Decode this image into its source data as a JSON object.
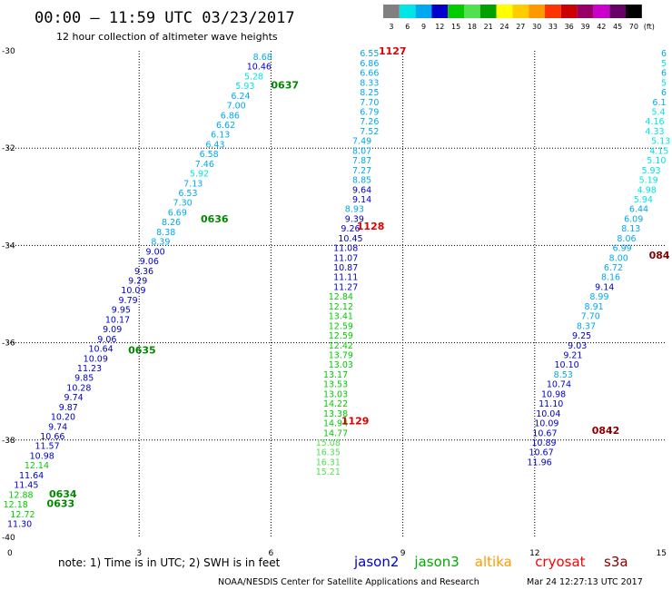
{
  "title": "00:00 – 11:59 UTC 03/23/2017",
  "subtitle": "12 hour collection of altimeter wave heights",
  "note": "note:  1) Time is in UTC;  2) SWH is in feet",
  "credit": "NOAA/NESDIS Center for Satellite Applications and Research",
  "generated": "Mar 24 12:27:13 UTC 2017",
  "colors": {
    "text_black": "#000000",
    "pass_label_green": "#008800",
    "pass_label_red": "#dd0000",
    "pass_label_darkred": "#880000",
    "grid": "#000000"
  },
  "chart_data": {
    "type": "scatter",
    "xlim": [
      0,
      15
    ],
    "ylim": [
      -40,
      -30
    ],
    "x_ticks": [
      "0",
      "3",
      "6",
      "9",
      "12",
      "15"
    ],
    "y_ticks": [
      "-30",
      "-32",
      "-34",
      "-36",
      "-38",
      "-40"
    ],
    "grid": true,
    "color_scale": {
      "unit": "(ft)",
      "values": [
        "3",
        "6",
        "9",
        "12",
        "15",
        "18",
        "21",
        "24",
        "27",
        "30",
        "33",
        "36",
        "39",
        "42",
        "45",
        "70"
      ],
      "colors": [
        "#808080",
        "#00e5e5",
        "#00a8f0",
        "#0000cc",
        "#00cc00",
        "#50e050",
        "#00a000",
        "#ffff00",
        "#ffcc00",
        "#ff9900",
        "#ff3300",
        "#cc0000",
        "#990066",
        "#cc00cc",
        "#660066",
        "#000000"
      ]
    },
    "legend": [
      {
        "name": "jason2",
        "color": "#0000cc"
      },
      {
        "name": "jason3",
        "color": "#00aa00"
      },
      {
        "name": "altika",
        "color": "#ff9900"
      },
      {
        "name": "cryosat",
        "color": "#ff0000"
      },
      {
        "name": "s3a",
        "color": "#880000"
      }
    ],
    "pass_labels": [
      {
        "text": "0637",
        "x": 6.0,
        "y": -30.7,
        "color": "#008800"
      },
      {
        "text": "0636",
        "x": 4.4,
        "y": -33.45,
        "color": "#008800"
      },
      {
        "text": "0635",
        "x": 2.75,
        "y": -36.15,
        "color": "#008800"
      },
      {
        "text": "0634",
        "x": 0.95,
        "y": -39.1,
        "color": "#008800"
      },
      {
        "text": "0633",
        "x": 0.9,
        "y": -39.3,
        "color": "#008800"
      },
      {
        "text": "1127",
        "x": 8.45,
        "y": -30.0,
        "color": "#dd0000"
      },
      {
        "text": "1128",
        "x": 7.95,
        "y": -33.6,
        "color": "#dd0000"
      },
      {
        "text": "1129",
        "x": 7.6,
        "y": -37.6,
        "color": "#dd0000"
      },
      {
        "text": "0842",
        "x": 13.3,
        "y": -37.8,
        "color": "#880000"
      },
      {
        "text": "084",
        "x": 14.6,
        "y": -34.2,
        "color": "#880000"
      }
    ],
    "series": [
      {
        "name": "pass 0633-0637",
        "points": [
          {
            "x": 5.81,
            "y": -30.12,
            "v": "8.68"
          },
          {
            "x": 5.73,
            "y": -30.32,
            "v": "10.46"
          },
          {
            "x": 5.61,
            "y": -30.52,
            "v": "5.28"
          },
          {
            "x": 5.41,
            "y": -30.72,
            "v": "5.93"
          },
          {
            "x": 5.31,
            "y": -30.92,
            "v": "6.24"
          },
          {
            "x": 5.21,
            "y": -31.12,
            "v": "7.00"
          },
          {
            "x": 5.07,
            "y": -31.32,
            "v": "6.86"
          },
          {
            "x": 4.97,
            "y": -31.52,
            "v": "6.62"
          },
          {
            "x": 4.85,
            "y": -31.72,
            "v": "6.13"
          },
          {
            "x": 4.73,
            "y": -31.92,
            "v": "6.43"
          },
          {
            "x": 4.59,
            "y": -32.12,
            "v": "6.58"
          },
          {
            "x": 4.49,
            "y": -32.32,
            "v": "7.46"
          },
          {
            "x": 4.37,
            "y": -32.52,
            "v": "5.92"
          },
          {
            "x": 4.23,
            "y": -32.72,
            "v": "7.13"
          },
          {
            "x": 4.11,
            "y": -32.92,
            "v": "6.53"
          },
          {
            "x": 3.99,
            "y": -33.12,
            "v": "7.30"
          },
          {
            "x": 3.87,
            "y": -33.32,
            "v": "6.69"
          },
          {
            "x": 3.73,
            "y": -33.52,
            "v": "8.26"
          },
          {
            "x": 3.61,
            "y": -33.72,
            "v": "8.38"
          },
          {
            "x": 3.49,
            "y": -33.92,
            "v": "8.39"
          },
          {
            "x": 3.37,
            "y": -34.12,
            "v": "9.00"
          },
          {
            "x": 3.23,
            "y": -34.32,
            "v": "9.06"
          },
          {
            "x": 3.11,
            "y": -34.52,
            "v": "9.36"
          },
          {
            "x": 2.97,
            "y": -34.72,
            "v": "9.29"
          },
          {
            "x": 2.87,
            "y": -34.92,
            "v": "10.09"
          },
          {
            "x": 2.75,
            "y": -35.12,
            "v": "9.79"
          },
          {
            "x": 2.59,
            "y": -35.32,
            "v": "9.95"
          },
          {
            "x": 2.51,
            "y": -35.52,
            "v": "10.17"
          },
          {
            "x": 2.39,
            "y": -35.72,
            "v": "9.09"
          },
          {
            "x": 2.27,
            "y": -35.92,
            "v": "9.06"
          },
          {
            "x": 2.13,
            "y": -36.12,
            "v": "10.64"
          },
          {
            "x": 2.01,
            "y": -36.32,
            "v": "10.09"
          },
          {
            "x": 1.87,
            "y": -36.52,
            "v": "11.23"
          },
          {
            "x": 1.75,
            "y": -36.72,
            "v": "9.85"
          },
          {
            "x": 1.63,
            "y": -36.92,
            "v": "10.28"
          },
          {
            "x": 1.51,
            "y": -37.12,
            "v": "9.74"
          },
          {
            "x": 1.39,
            "y": -37.32,
            "v": "9.87"
          },
          {
            "x": 1.27,
            "y": -37.52,
            "v": "10.20"
          },
          {
            "x": 1.15,
            "y": -37.72,
            "v": "9.74"
          },
          {
            "x": 1.03,
            "y": -37.92,
            "v": "10.66"
          },
          {
            "x": 0.91,
            "y": -38.12,
            "v": "11.57"
          },
          {
            "x": 0.79,
            "y": -38.32,
            "v": "10.98"
          },
          {
            "x": 0.67,
            "y": -38.52,
            "v": "12.14"
          },
          {
            "x": 0.55,
            "y": -38.72,
            "v": "11.64"
          },
          {
            "x": 0.43,
            "y": -38.92,
            "v": "11.45"
          },
          {
            "x": 0.31,
            "y": -39.12,
            "v": "12.88"
          },
          {
            "x": 0.19,
            "y": -39.32,
            "v": "12.18"
          },
          {
            "x": 0.07,
            "y": -39.52,
            "v": "12.72"
          },
          {
            "x": 0.0,
            "y": -39.72,
            "v": "11.30"
          }
        ]
      },
      {
        "name": "pass 1127-1129",
        "points": [
          {
            "x": 8.24,
            "y": -30.05,
            "v": "6.55"
          },
          {
            "x": 8.24,
            "y": -30.25,
            "v": "6.86"
          },
          {
            "x": 8.24,
            "y": -30.45,
            "v": "6.66"
          },
          {
            "x": 8.24,
            "y": -30.65,
            "v": "8.33"
          },
          {
            "x": 8.24,
            "y": -30.85,
            "v": "8.25"
          },
          {
            "x": 8.24,
            "y": -31.05,
            "v": "7.70"
          },
          {
            "x": 8.24,
            "y": -31.25,
            "v": "6.79"
          },
          {
            "x": 8.24,
            "y": -31.45,
            "v": "7.26"
          },
          {
            "x": 8.24,
            "y": -31.65,
            "v": "7.52"
          },
          {
            "x": 8.07,
            "y": -31.85,
            "v": "7.49"
          },
          {
            "x": 8.07,
            "y": -32.05,
            "v": "8.07"
          },
          {
            "x": 8.07,
            "y": -32.25,
            "v": "7.87"
          },
          {
            "x": 8.07,
            "y": -32.45,
            "v": "7.27"
          },
          {
            "x": 8.07,
            "y": -32.65,
            "v": "8.85"
          },
          {
            "x": 8.07,
            "y": -32.85,
            "v": "9.64"
          },
          {
            "x": 8.07,
            "y": -33.05,
            "v": "9.14"
          },
          {
            "x": 7.9,
            "y": -33.25,
            "v": "8.93"
          },
          {
            "x": 7.9,
            "y": -33.45,
            "v": "9.39"
          },
          {
            "x": 7.81,
            "y": -33.65,
            "v": "9.26"
          },
          {
            "x": 7.81,
            "y": -33.85,
            "v": "10.45"
          },
          {
            "x": 7.7,
            "y": -34.05,
            "v": "11.08"
          },
          {
            "x": 7.7,
            "y": -34.25,
            "v": "11.07"
          },
          {
            "x": 7.7,
            "y": -34.45,
            "v": "10.87"
          },
          {
            "x": 7.7,
            "y": -34.65,
            "v": "11.11"
          },
          {
            "x": 7.7,
            "y": -34.85,
            "v": "11.27"
          },
          {
            "x": 7.59,
            "y": -35.05,
            "v": "12.84"
          },
          {
            "x": 7.59,
            "y": -35.25,
            "v": "12.12"
          },
          {
            "x": 7.59,
            "y": -35.45,
            "v": "13.41"
          },
          {
            "x": 7.59,
            "y": -35.65,
            "v": "12.59"
          },
          {
            "x": 7.59,
            "y": -35.85,
            "v": "12.59"
          },
          {
            "x": 7.59,
            "y": -36.05,
            "v": "12.42"
          },
          {
            "x": 7.59,
            "y": -36.25,
            "v": "13.79"
          },
          {
            "x": 7.59,
            "y": -36.45,
            "v": "13.03"
          },
          {
            "x": 7.47,
            "y": -36.65,
            "v": "13.17"
          },
          {
            "x": 7.47,
            "y": -36.85,
            "v": "13.53"
          },
          {
            "x": 7.47,
            "y": -37.05,
            "v": "13.03"
          },
          {
            "x": 7.47,
            "y": -37.25,
            "v": "14.22"
          },
          {
            "x": 7.47,
            "y": -37.45,
            "v": "13.38"
          },
          {
            "x": 7.47,
            "y": -37.65,
            "v": "14.94"
          },
          {
            "x": 7.47,
            "y": -37.85,
            "v": "14.77"
          },
          {
            "x": 7.3,
            "y": -38.05,
            "v": "15.08"
          },
          {
            "x": 7.3,
            "y": -38.25,
            "v": "16.35"
          },
          {
            "x": 7.3,
            "y": -38.45,
            "v": "16.31"
          },
          {
            "x": 7.3,
            "y": -38.65,
            "v": "15.21"
          }
        ]
      },
      {
        "name": "pass 0842",
        "points": [
          {
            "x": 15.0,
            "y": -30.05,
            "v": "6"
          },
          {
            "x": 15.0,
            "y": -30.25,
            "v": "5"
          },
          {
            "x": 15.0,
            "y": -30.45,
            "v": "6"
          },
          {
            "x": 15.0,
            "y": -30.65,
            "v": "5"
          },
          {
            "x": 15.0,
            "y": -30.85,
            "v": "6"
          },
          {
            "x": 14.99,
            "y": -31.05,
            "v": "6.1"
          },
          {
            "x": 14.97,
            "y": -31.25,
            "v": "5.4"
          },
          {
            "x": 14.95,
            "y": -31.45,
            "v": "4.16"
          },
          {
            "x": 14.95,
            "y": -31.65,
            "v": "4.33"
          },
          {
            "x": 14.87,
            "y": -31.85,
            "v": "5.13"
          },
          {
            "x": 14.83,
            "y": -32.05,
            "v": "4.15"
          },
          {
            "x": 14.77,
            "y": -32.25,
            "v": "5.10"
          },
          {
            "x": 14.65,
            "y": -32.45,
            "v": "5.93"
          },
          {
            "x": 14.59,
            "y": -32.65,
            "v": "5.19"
          },
          {
            "x": 14.55,
            "y": -32.85,
            "v": "4.98"
          },
          {
            "x": 14.47,
            "y": -33.05,
            "v": "5.94"
          },
          {
            "x": 14.37,
            "y": -33.25,
            "v": "6.44"
          },
          {
            "x": 14.25,
            "y": -33.45,
            "v": "6.09"
          },
          {
            "x": 14.19,
            "y": -33.65,
            "v": "8.13"
          },
          {
            "x": 14.09,
            "y": -33.85,
            "v": "8.06"
          },
          {
            "x": 13.99,
            "y": -34.05,
            "v": "6.99"
          },
          {
            "x": 13.91,
            "y": -34.25,
            "v": "8.00"
          },
          {
            "x": 13.79,
            "y": -34.45,
            "v": "6.72"
          },
          {
            "x": 13.73,
            "y": -34.65,
            "v": "8.16"
          },
          {
            "x": 13.59,
            "y": -34.85,
            "v": "9.14"
          },
          {
            "x": 13.47,
            "y": -35.05,
            "v": "8.99"
          },
          {
            "x": 13.35,
            "y": -35.25,
            "v": "8.91"
          },
          {
            "x": 13.27,
            "y": -35.45,
            "v": "7.70"
          },
          {
            "x": 13.17,
            "y": -35.65,
            "v": "8.37"
          },
          {
            "x": 13.07,
            "y": -35.85,
            "v": "9.25"
          },
          {
            "x": 12.97,
            "y": -36.05,
            "v": "9.03"
          },
          {
            "x": 12.87,
            "y": -36.25,
            "v": "9.21"
          },
          {
            "x": 12.73,
            "y": -36.45,
            "v": "10.10"
          },
          {
            "x": 12.65,
            "y": -36.65,
            "v": "8.53"
          },
          {
            "x": 12.55,
            "y": -36.85,
            "v": "10.74"
          },
          {
            "x": 12.43,
            "y": -37.05,
            "v": "10.98"
          },
          {
            "x": 12.37,
            "y": -37.25,
            "v": "11.10"
          },
          {
            "x": 12.31,
            "y": -37.45,
            "v": "10.04"
          },
          {
            "x": 12.27,
            "y": -37.65,
            "v": "10.09"
          },
          {
            "x": 12.23,
            "y": -37.85,
            "v": "10.67"
          },
          {
            "x": 12.21,
            "y": -38.05,
            "v": "10.89"
          },
          {
            "x": 12.15,
            "y": -38.25,
            "v": "10.67"
          },
          {
            "x": 12.11,
            "y": -38.45,
            "v": "11.96"
          }
        ]
      }
    ]
  }
}
